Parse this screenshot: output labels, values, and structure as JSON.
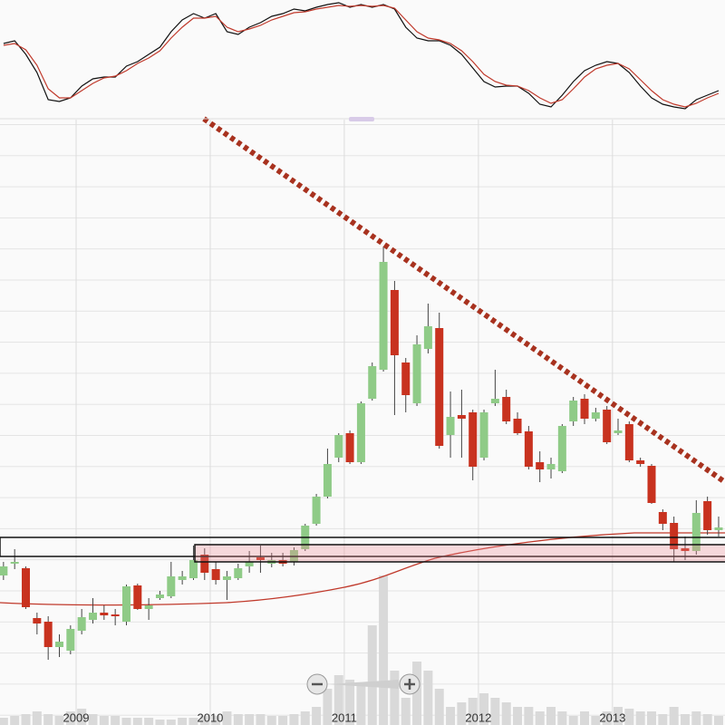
{
  "chart_data": {
    "type": "candlestick",
    "categories": [
      null,
      null,
      null,
      null,
      null,
      null,
      null,
      "2009",
      null,
      null,
      null,
      null,
      null,
      null,
      null,
      null,
      null,
      null,
      null,
      "2010",
      null,
      null,
      null,
      null,
      null,
      null,
      null,
      null,
      null,
      null,
      null,
      "2011",
      null,
      null,
      null,
      null,
      null,
      null,
      null,
      null,
      null,
      null,
      null,
      "2012",
      null,
      null,
      null,
      null,
      null,
      null,
      null,
      null,
      null,
      null,
      null,
      "2013",
      null,
      null,
      null,
      null,
      null,
      null,
      null,
      null,
      null
    ],
    "open": [
      16.5,
      17.8,
      17.3,
      11.8,
      11.4,
      8.6,
      8.2,
      10.4,
      11.6,
      12.4,
      12.2,
      11.4,
      15.4,
      12.8,
      14,
      14.2,
      16,
      16.2,
      18.8,
      17.2,
      16,
      16.2,
      17.5,
      18.5,
      17.8,
      18.2,
      18,
      19.4,
      22.2,
      25.2,
      29.5,
      32.2,
      29,
      36,
      39.2,
      48,
      40,
      35.5,
      41.5,
      43.8,
      32,
      34.2,
      34.5,
      29.5,
      35.5,
      36.2,
      33.8,
      32.4,
      29,
      28.2,
      28,
      33.5,
      36,
      33.8,
      34.8,
      32.2,
      33.2,
      29.2,
      28.6,
      23.5,
      22.3,
      19.5,
      19.2,
      24.7,
      21.5
    ],
    "high": [
      18,
      19.4,
      17.5,
      12.4,
      12,
      10,
      11,
      12.8,
      14,
      13.2,
      12.8,
      15.5,
      15.6,
      14,
      14.8,
      18,
      17,
      19.8,
      19.5,
      18,
      17,
      17.8,
      19.2,
      19.8,
      19,
      19,
      19.6,
      22.2,
      25.5,
      30.5,
      32.2,
      32.5,
      35.7,
      40,
      52.8,
      49,
      40.5,
      43,
      46.5,
      45.5,
      36.8,
      37,
      34.8,
      34.8,
      39.2,
      37,
      34.5,
      33,
      30.2,
      29.5,
      33.2,
      36.2,
      36.5,
      35,
      35.2,
      33.8,
      33.5,
      29.5,
      28.8,
      23.8,
      23,
      20.8,
      24.8,
      25.2,
      23
    ],
    "low": [
      16,
      17.2,
      12.8,
      10,
      7.2,
      7.5,
      7.8,
      10,
      11.2,
      11.6,
      11,
      11,
      12.7,
      11.6,
      13.8,
      14,
      15.5,
      16,
      16,
      15.5,
      13.8,
      16,
      16.8,
      16.8,
      17.4,
      17.5,
      17.6,
      19.2,
      22,
      25,
      29,
      28.8,
      28.8,
      35.8,
      39,
      34.2,
      34.5,
      35.2,
      41,
      30.5,
      29.5,
      29.5,
      27,
      29.2,
      35.2,
      33.2,
      32,
      28.2,
      26.8,
      27.2,
      27.8,
      33,
      33.2,
      33.5,
      31,
      32,
      29,
      28.5,
      24.4,
      21.5,
      18,
      18.2,
      18.8,
      21,
      20.8
    ],
    "close": [
      17.5,
      18,
      13,
      11.2,
      8.6,
      9.2,
      10.6,
      11.9,
      12.4,
      12.1,
      12,
      15.3,
      12.8,
      13.2,
      14.4,
      16.4,
      16.4,
      18.2,
      16.8,
      16,
      16.4,
      17.3,
      18,
      18.2,
      18.2,
      17.8,
      19.3,
      22,
      25.2,
      28.8,
      32,
      29,
      35.5,
      39.6,
      51.1,
      40.8,
      36.4,
      42,
      44,
      30.8,
      34,
      33.8,
      28.5,
      34.5,
      36,
      33.5,
      32.2,
      28.5,
      28.2,
      28.8,
      33,
      35.8,
      33.8,
      34.5,
      31.2,
      32.5,
      29.2,
      28.8,
      24.5,
      22.2,
      19.4,
      19.2,
      23.4,
      21.5,
      21.8
    ],
    "volume": [
      8,
      10,
      12,
      15,
      12,
      10,
      15,
      18,
      12,
      10,
      10,
      8,
      8,
      8,
      6,
      6,
      8,
      8,
      10,
      10,
      15,
      12,
      12,
      12,
      10,
      10,
      12,
      15,
      20,
      40,
      55,
      50,
      45,
      110,
      165,
      60,
      30,
      70,
      60,
      40,
      20,
      25,
      30,
      35,
      30,
      25,
      20,
      20,
      15,
      20,
      15,
      10,
      15,
      10,
      15,
      20,
      18,
      15,
      15,
      12,
      20,
      12,
      15,
      12,
      10
    ],
    "oscillator_k": [
      82,
      85,
      70,
      50,
      20,
      18,
      22,
      35,
      43,
      45,
      45,
      57,
      62,
      70,
      78,
      95,
      108,
      115,
      110,
      115,
      95,
      92,
      100,
      105,
      112,
      115,
      120,
      118,
      122,
      125,
      127,
      122,
      125,
      122,
      125,
      120,
      100,
      88,
      85,
      85,
      80,
      70,
      55,
      40,
      34,
      35,
      35,
      27,
      15,
      12,
      25,
      40,
      52,
      58,
      62,
      60,
      50,
      35,
      22,
      15,
      12,
      10,
      20,
      25,
      30
    ],
    "oscillator_d": [
      80,
      82,
      75,
      58,
      32,
      22,
      22,
      30,
      38,
      44,
      46,
      52,
      60,
      66,
      74,
      88,
      100,
      110,
      110,
      112,
      100,
      95,
      98,
      102,
      108,
      112,
      116,
      117,
      120,
      122,
      124,
      123,
      124,
      123,
      124,
      121,
      108,
      95,
      88,
      86,
      82,
      74,
      62,
      48,
      40,
      36,
      35,
      30,
      22,
      16,
      20,
      32,
      45,
      54,
      58,
      60,
      54,
      42,
      30,
      20,
      15,
      12,
      16,
      22,
      27
    ],
    "ylim": [
      0,
      67
    ],
    "volume_lim": [
      0,
      200
    ],
    "oscillator_lim": [
      0,
      130
    ],
    "up_color": "#8fcb87",
    "down_color": "#c8321f",
    "volume_color": "#d9d9d9",
    "k_color": "#111111",
    "d_color": "#c0392b",
    "grid": true
  }
}
